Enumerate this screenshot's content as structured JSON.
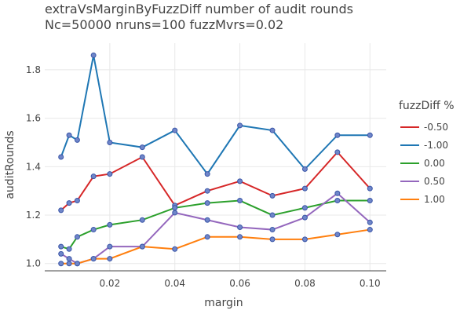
{
  "chart_data": {
    "type": "line",
    "title": "extraVsMarginByFuzzDiff number of audit rounds",
    "subtitle": "Nc=50000 nruns=100 fuzzMvrs=0.02",
    "xlabel": "margin",
    "ylabel": "auditRounds",
    "xlim": [
      0,
      0.105
    ],
    "ylim": [
      0.97,
      1.91
    ],
    "x_ticks": [
      "0.02",
      "0.04",
      "0.06",
      "0.08",
      "0.10"
    ],
    "y_ticks": [
      "1.0",
      "1.2",
      "1.4",
      "1.6",
      "1.8"
    ],
    "grid": true,
    "legend_title": "fuzzDiff %",
    "legend_position": "right",
    "x": [
      0.005,
      0.0075,
      0.01,
      0.015,
      0.02,
      0.03,
      0.04,
      0.05,
      0.06,
      0.07,
      0.08,
      0.09,
      0.1
    ],
    "series": [
      {
        "name": "-0.50",
        "color": "#d62728",
        "values": [
          1.22,
          1.25,
          1.26,
          1.36,
          1.37,
          1.44,
          1.24,
          1.3,
          1.34,
          1.28,
          1.31,
          1.46,
          1.31
        ]
      },
      {
        "name": "-1.00",
        "color": "#1f77b4",
        "values": [
          1.44,
          1.53,
          1.51,
          1.86,
          1.5,
          1.48,
          1.55,
          1.37,
          1.57,
          1.55,
          1.39,
          1.53,
          1.53
        ]
      },
      {
        "name": "0.00",
        "color": "#2ca02c",
        "values": [
          1.07,
          1.06,
          1.11,
          1.14,
          1.16,
          1.18,
          1.23,
          1.25,
          1.26,
          1.2,
          1.23,
          1.26,
          1.26
        ]
      },
      {
        "name": "0.50",
        "color": "#9467bd",
        "values": [
          1.04,
          1.02,
          1.0,
          1.02,
          1.07,
          1.07,
          1.21,
          1.18,
          1.15,
          1.14,
          1.19,
          1.29,
          1.17
        ]
      },
      {
        "name": "1.00",
        "color": "#ff7f0e",
        "values": [
          1.0,
          1.0,
          1.0,
          1.02,
          1.02,
          1.07,
          1.06,
          1.11,
          1.11,
          1.1,
          1.1,
          1.12,
          1.14
        ]
      }
    ]
  }
}
